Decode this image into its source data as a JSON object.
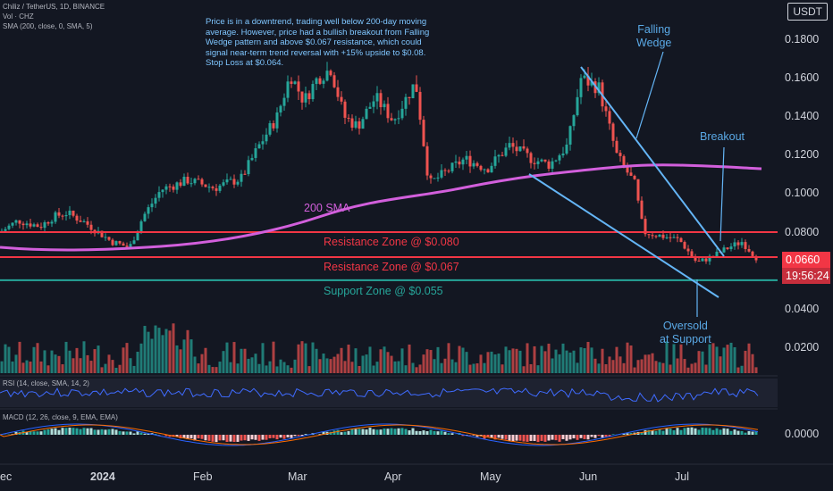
{
  "header": {
    "symbol_line": "Chiliz / TetherUS, 1D, BINANCE",
    "vol_line": "Vol · CHZ",
    "sma_line": "SMA (200, close, 0, SMA, 5)",
    "currency_button": "USDT"
  },
  "note": "Price is in a downtrend, trading well below 200-day moving average. However, price had a bullish breakout from Falling Wedge pattern and above $0.067 resistance, which could signal near-term trend reversal with +15% upside to $0.08. Stop Loss at $0.064.",
  "annotations": {
    "falling_wedge_line1": "Falling",
    "falling_wedge_line2": "Wedge",
    "breakout": "Breakout",
    "oversold_line1": "Oversold",
    "oversold_line2": "at Support",
    "sma_label": "200 SMA"
  },
  "zones": {
    "resistance_80": "Resistance Zone @ $0.080",
    "resistance_67": "Resistance Zone @ $0.067",
    "support_55": "Support Zone @ $0.055"
  },
  "price_axis": [
    "0.1800",
    "0.1600",
    "0.1400",
    "0.1200",
    "0.1000",
    "0.0800",
    "0.0400",
    "0.0200"
  ],
  "macd_axis": "0.0000",
  "current_price": "0.0660",
  "countdown": "19:56:24",
  "indicators": {
    "rsi": "RSI (14, close, SMA, 14, 2)",
    "macd": "MACD (12, 26, close, 9, EMA, EMA)"
  },
  "time_axis": [
    "ec",
    "2024",
    "Feb",
    "Mar",
    "Apr",
    "May",
    "Jun",
    "Jul"
  ],
  "colors": {
    "up": "#26a69a",
    "down": "#ef5350",
    "sma": "#d25fdc",
    "wedge": "#64b5f6",
    "resistance": "#f23645",
    "support": "#26a69a"
  },
  "chart_data": {
    "type": "line",
    "title": "Chiliz / TetherUS, 1D, BINANCE",
    "ylabel": "USDT",
    "ylim": [
      0.03,
      0.19
    ],
    "key_points": {
      "x": [
        "Dec",
        "2024",
        "Feb",
        "Mar",
        "Mar",
        "Apr",
        "Apr",
        "May",
        "Jun",
        "Jun",
        "Jul",
        "Jul"
      ],
      "close": [
        0.083,
        0.086,
        0.1,
        0.16,
        0.165,
        0.1,
        0.15,
        0.115,
        0.16,
        0.11,
        0.062,
        0.066
      ]
    },
    "levels": [
      0.08,
      0.067,
      0.055
    ]
  }
}
